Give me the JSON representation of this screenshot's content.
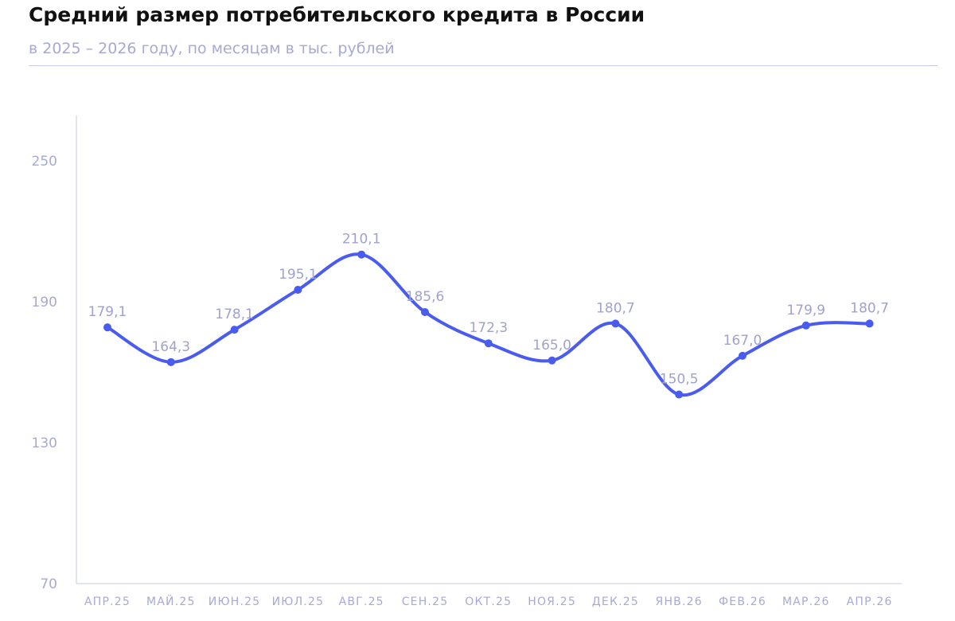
{
  "header": {
    "title": "Средний размер потребительского кредита в России",
    "subtitle": "в 2025 – 2026 году, по месяцам в тыс. рублей"
  },
  "colors": {
    "line": "#4a5cf0",
    "axis": "#c9cbe6",
    "label": "#a7a9d6"
  },
  "chart_data": {
    "type": "line",
    "categories": [
      "АПР.25",
      "МАЙ.25",
      "ИЮН.25",
      "ИЮЛ.25",
      "АВГ.25",
      "СЕН.25",
      "ОКТ.25",
      "НОЯ.25",
      "ДЕК.25",
      "ЯНВ.26",
      "ФЕВ.26",
      "МАР.26",
      "АПР.26"
    ],
    "series": [
      {
        "values": [
          179.1,
          164.3,
          178.1,
          195.1,
          210.1,
          185.6,
          172.3,
          165.0,
          180.7,
          150.5,
          167.0,
          179.9,
          180.7
        ],
        "labels": [
          "179,1",
          "164,3",
          "178,1",
          "195,1",
          "210,1",
          "185,6",
          "172,3",
          "165,0",
          "180,7",
          "150,5",
          "167,0",
          "179,9",
          "180,7"
        ]
      }
    ],
    "yticks": [
      "70",
      "130",
      "190",
      "250"
    ],
    "ylim": [
      70,
      260
    ],
    "grid": false,
    "smooth": true
  }
}
